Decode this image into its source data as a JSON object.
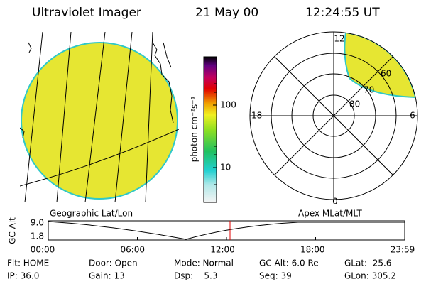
{
  "header": {
    "title": "Ultraviolet Imager",
    "date": "21 May 00",
    "time": "12:24:55 UT"
  },
  "colorbar": {
    "label": "photon cm⁻²s⁻¹",
    "ticks": [
      "100",
      "10"
    ]
  },
  "polar": {
    "hours": [
      "12",
      "6",
      "0",
      "18"
    ],
    "rings": [
      "60",
      "70",
      "80"
    ]
  },
  "timeline": {
    "left_title": "Geographic Lat/Lon",
    "right_title": "Apex MLat/MLT",
    "y_label": "GC Alt",
    "y_labels": [
      "9.0",
      "1.8"
    ],
    "x_labels": [
      "00:00",
      "06:00",
      "12:00",
      "18:00",
      "23:59"
    ]
  },
  "status": [
    [
      "Flt: HOME",
      "IP: 36.0"
    ],
    [
      "Door: Open",
      "Gain: 13"
    ],
    [
      "Mode: Normal",
      "Dsp:    5.3"
    ],
    [
      "GC Alt: 6.0 Re",
      "Seq: 39"
    ],
    [
      "GLat:  25.6",
      "GLon: 305.2"
    ]
  ]
}
